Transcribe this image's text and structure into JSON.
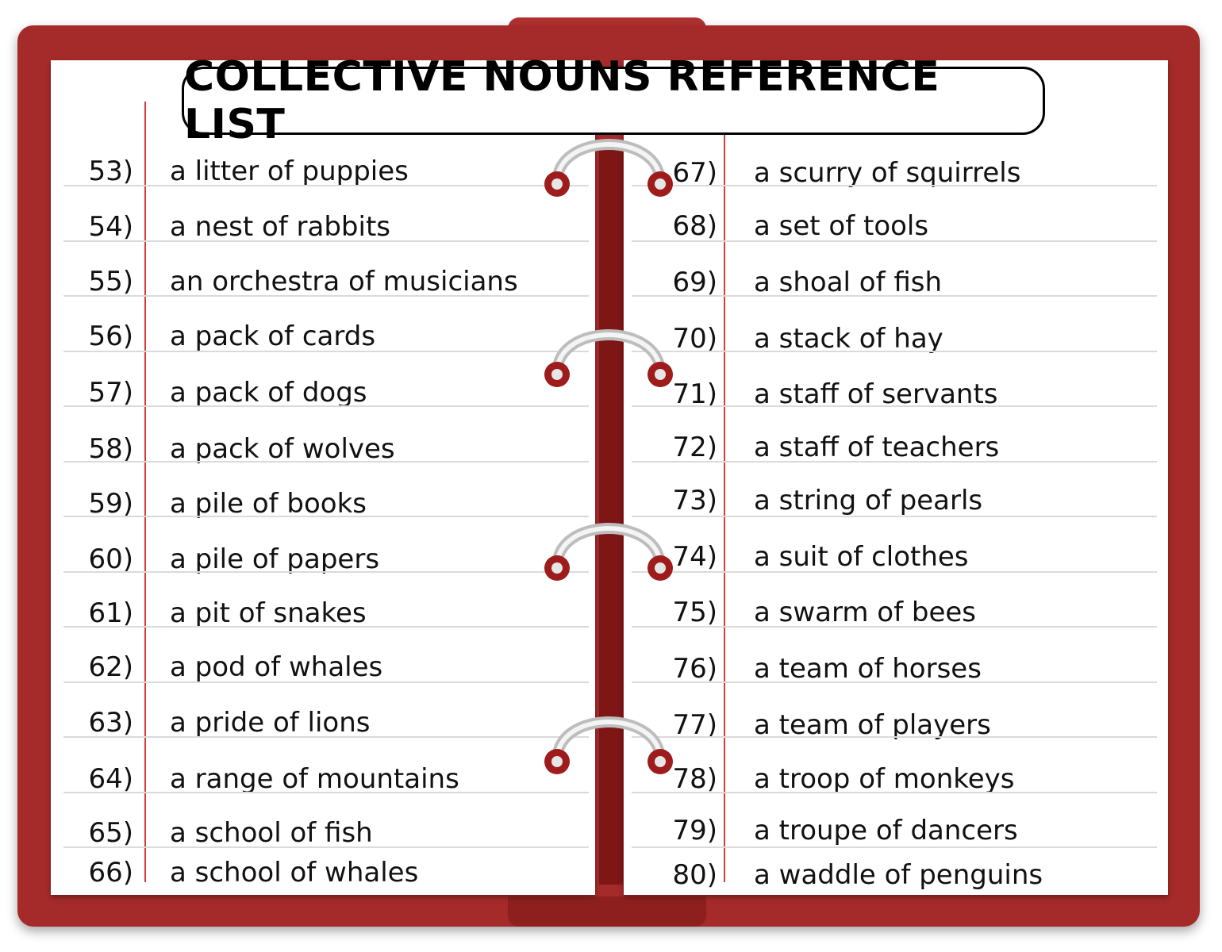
{
  "title": "COLLECTIVE NOUNS REFERENCE LIST",
  "left_page": [
    {
      "num": "53)",
      "text": "a litter of puppies"
    },
    {
      "num": "54)",
      "text": "a nest of rabbits"
    },
    {
      "num": "55)",
      "text": "an orchestra of musicians"
    },
    {
      "num": "56)",
      "text": "a pack of cards"
    },
    {
      "num": "57)",
      "text": "a pack of dogs"
    },
    {
      "num": "58)",
      "text": "a pack of wolves"
    },
    {
      "num": "59)",
      "text": "a pile of books"
    },
    {
      "num": "60)",
      "text": "a pile of papers"
    },
    {
      "num": "61)",
      "text": "a pit of snakes"
    },
    {
      "num": "62)",
      "text": "a pod of whales"
    },
    {
      "num": "63)",
      "text": "a pride of lions"
    },
    {
      "num": "64)",
      "text": "a range of mountains"
    },
    {
      "num": "65)",
      "text": "a school of fish"
    },
    {
      "num": "66)",
      "text": "a school of whales"
    }
  ],
  "right_page": [
    {
      "num": "67)",
      "text": "a scurry of squirrels"
    },
    {
      "num": "68)",
      "text": "a set of tools"
    },
    {
      "num": "69)",
      "text": "a shoal of fish"
    },
    {
      "num": "70)",
      "text": "a stack of hay"
    },
    {
      "num": "71)",
      "text": "a staff of servants"
    },
    {
      "num": "72)",
      "text": "a staff of teachers"
    },
    {
      "num": "73)",
      "text": "a string of pearls"
    },
    {
      "num": "74)",
      "text": "a suit of clothes"
    },
    {
      "num": "75)",
      "text": "a swarm of bees"
    },
    {
      "num": "76)",
      "text": "a team of horses"
    },
    {
      "num": "77)",
      "text": "a team of players"
    },
    {
      "num": "78)",
      "text": "a troop of monkeys"
    },
    {
      "num": "79)",
      "text": "a troupe of dancers"
    },
    {
      "num": "80)",
      "text": "a waddle of penguins"
    }
  ],
  "colors": {
    "cover": "#a52a2a",
    "spine": "#7e1616",
    "margin_line": "#d93a3a",
    "ruled_line": "#dadada"
  }
}
